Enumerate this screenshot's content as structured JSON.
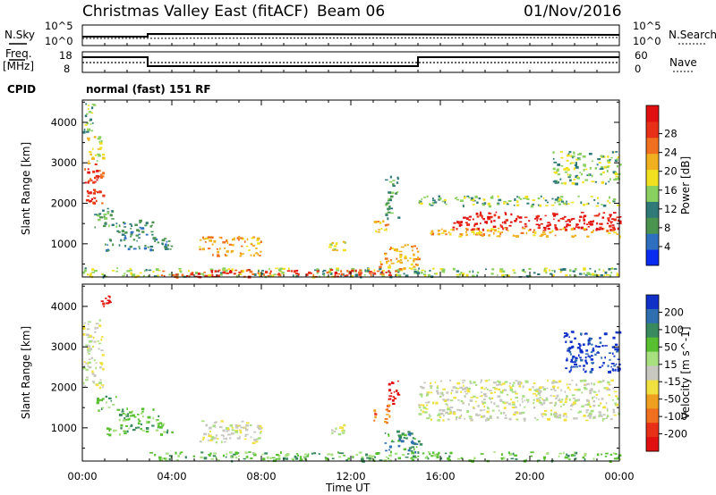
{
  "header": {
    "station": "Christmas Valley East (fitACF)",
    "beam": "Beam 06",
    "date": "01/Nov/2016",
    "cpid_label": "CPID",
    "cpid_value": "normal (fast) 151 RF"
  },
  "noise_panel": {
    "left_label": "N.Sky",
    "right_label": "N.Search",
    "y_ticks": [
      "10^5",
      "10^0"
    ]
  },
  "freq_panel": {
    "left_label_1": "Freq.",
    "left_label_2": "[MHz]",
    "right_label": "Nave",
    "left_ticks": [
      "18",
      "8"
    ],
    "right_ticks": [
      "60",
      "0"
    ]
  },
  "chart_data": [
    {
      "type": "heatmap",
      "name": "power",
      "ylabel": "Slant Range [km]",
      "xlabel": "Time UT",
      "x_ticks": [
        "00:00",
        "04:00",
        "08:00",
        "12:00",
        "16:00",
        "20:00",
        "00:00"
      ],
      "y_ticks": [
        1000,
        2000,
        3000,
        4000
      ],
      "ylim": [
        180,
        4550
      ],
      "xlim_hours": [
        0,
        24
      ],
      "colorbar": {
        "label": "Power [dB]",
        "ticks": [
          "4",
          "8",
          "12",
          "16",
          "20",
          "24",
          "28"
        ],
        "colors": [
          "#0a2cf0",
          "#2f6fc0",
          "#4b9450",
          "#2f7a78",
          "#8ad060",
          "#f0e020",
          "#f0b020",
          "#f07020",
          "#e83018",
          "#e01010"
        ]
      },
      "regions": [
        {
          "t": [
            0.0,
            0.9
          ],
          "r": [
            2000,
            3000
          ],
          "level": 8
        },
        {
          "t": [
            0.2,
            0.9
          ],
          "r": [
            3000,
            3700
          ],
          "level": 5
        },
        {
          "t": [
            0.0,
            0.5
          ],
          "r": [
            3700,
            4550
          ],
          "level": 4
        },
        {
          "t": [
            0.5,
            1.5
          ],
          "r": [
            1400,
            1900
          ],
          "level": 3
        },
        {
          "t": [
            1.0,
            4.0
          ],
          "r": [
            850,
            1150
          ],
          "level": 2
        },
        {
          "t": [
            1.5,
            3.2
          ],
          "r": [
            1150,
            1600
          ],
          "level": 2
        },
        {
          "t": [
            5.2,
            8.0
          ],
          "r": [
            700,
            1200
          ],
          "level": 6
        },
        {
          "t": [
            0.0,
            24.0
          ],
          "r": [
            200,
            420
          ],
          "level": 4
        },
        {
          "t": [
            3.0,
            14.0
          ],
          "r": [
            200,
            380
          ],
          "level": 8
        },
        {
          "t": [
            11.0,
            11.7
          ],
          "r": [
            850,
            1100
          ],
          "level": 5
        },
        {
          "t": [
            13.0,
            13.6
          ],
          "r": [
            1250,
            1600
          ],
          "level": 6
        },
        {
          "t": [
            13.2,
            15.0
          ],
          "r": [
            400,
            1000
          ],
          "level": 6
        },
        {
          "t": [
            13.5,
            14.1
          ],
          "r": [
            1600,
            2700
          ],
          "level": 3
        },
        {
          "t": [
            15.0,
            24.0
          ],
          "r": [
            1950,
            2200
          ],
          "level": 4
        },
        {
          "t": [
            16.5,
            24.0
          ],
          "r": [
            1350,
            1800
          ],
          "level": 9
        },
        {
          "t": [
            15.5,
            24.0
          ],
          "r": [
            1200,
            1400
          ],
          "level": 6
        },
        {
          "t": [
            21.0,
            24.0
          ],
          "r": [
            2500,
            3300
          ],
          "level": 4
        }
      ]
    },
    {
      "type": "heatmap",
      "name": "velocity",
      "ylabel": "Slant Range [km]",
      "xlabel": "Time UT",
      "x_ticks": [
        "00:00",
        "04:00",
        "08:00",
        "12:00",
        "16:00",
        "20:00",
        "00:00"
      ],
      "y_ticks": [
        1000,
        2000,
        3000,
        4000
      ],
      "ylim": [
        180,
        4550
      ],
      "xlim_hours": [
        0,
        24
      ],
      "colorbar": {
        "label": "Velocity [m s^-1]",
        "ticks": [
          "200",
          "100",
          "50",
          "15",
          "-15",
          "-50",
          "-100",
          "-200"
        ],
        "colors": [
          "#1030c8",
          "#2f6fb0",
          "#3a8a60",
          "#58c030",
          "#a8e080",
          "#c8c8c0",
          "#f0e040",
          "#f0a020",
          "#f07020",
          "#e83018",
          "#e01010"
        ]
      },
      "regions": [
        {
          "t": [
            0.0,
            0.9
          ],
          "r": [
            2000,
            3700
          ],
          "level": 5
        },
        {
          "t": [
            0.8,
            1.2
          ],
          "r": [
            3900,
            4300
          ],
          "level": 10
        },
        {
          "t": [
            0.5,
            1.5
          ],
          "r": [
            1450,
            1800
          ],
          "level": 3
        },
        {
          "t": [
            1.0,
            4.0
          ],
          "r": [
            850,
            1150
          ],
          "level": 3
        },
        {
          "t": [
            1.5,
            3.5
          ],
          "r": [
            1150,
            1500
          ],
          "level": 3
        },
        {
          "t": [
            5.2,
            8.0
          ],
          "r": [
            650,
            1200
          ],
          "level": 5
        },
        {
          "t": [
            3.0,
            24.0
          ],
          "r": [
            200,
            420
          ],
          "level": 3
        },
        {
          "t": [
            11.0,
            11.7
          ],
          "r": [
            850,
            1100
          ],
          "level": 5
        },
        {
          "t": [
            13.0,
            13.7
          ],
          "r": [
            1150,
            1600
          ],
          "level": 8
        },
        {
          "t": [
            13.6,
            14.1
          ],
          "r": [
            1600,
            2300
          ],
          "level": 10
        },
        {
          "t": [
            13.5,
            15.2
          ],
          "r": [
            400,
            950
          ],
          "level": 2
        },
        {
          "t": [
            15.0,
            24.0
          ],
          "r": [
            1200,
            2200
          ],
          "level": 5
        },
        {
          "t": [
            21.5,
            24.0
          ],
          "r": [
            2400,
            3400
          ],
          "level": 0
        }
      ]
    }
  ]
}
